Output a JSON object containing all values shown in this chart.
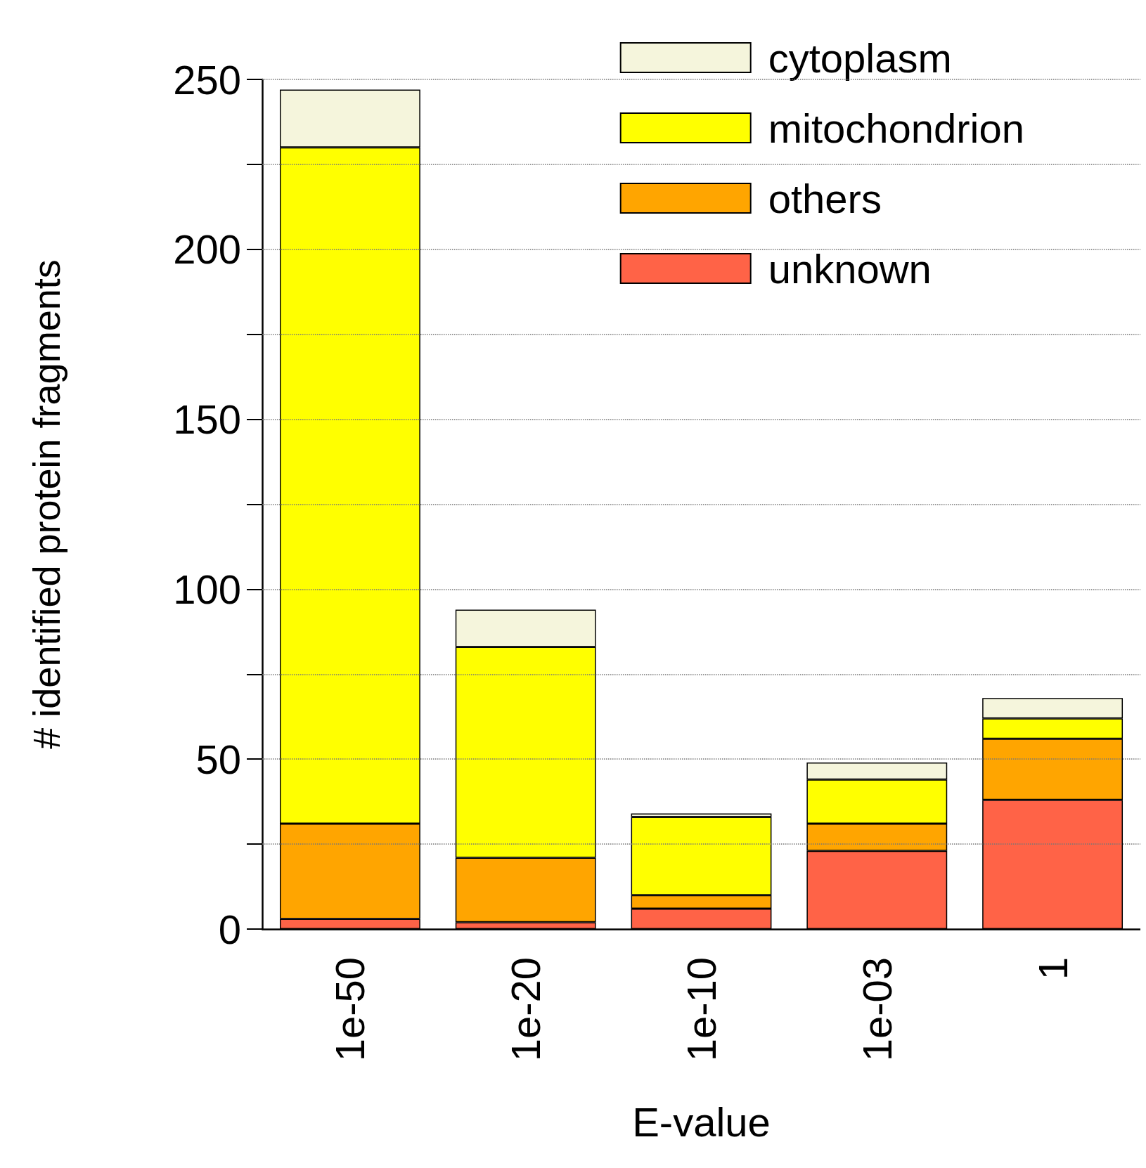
{
  "chart_data": {
    "type": "bar",
    "stacked": true,
    "xlabel": "E-value",
    "ylabel": "# identified protein fragments",
    "categories": [
      "1e-50",
      "1e-20",
      "1e-10",
      "1e-03",
      "1"
    ],
    "series": [
      {
        "name": "unknown",
        "color": "#ff6347",
        "values": [
          3,
          2,
          6,
          23,
          38
        ]
      },
      {
        "name": "others",
        "color": "#ffa500",
        "values": [
          28,
          19,
          4,
          8,
          18
        ]
      },
      {
        "name": "mitochondrion",
        "color": "#ffff00",
        "values": [
          199,
          62,
          23,
          13,
          6
        ]
      },
      {
        "name": "cytoplasm",
        "color": "#f5f5dc",
        "values": [
          17,
          11,
          1,
          5,
          6
        ]
      }
    ],
    "ylim": [
      0,
      250
    ],
    "yticks": [
      0,
      {
        "value": 25,
        "label": null
      },
      50,
      {
        "value": 75,
        "label": null
      },
      100,
      {
        "value": 125,
        "label": null
      },
      150,
      {
        "value": 175,
        "label": null
      },
      200,
      {
        "value": 225,
        "label": null
      },
      250
    ],
    "grid": "y",
    "line_style": "dotted",
    "legend": "top right"
  }
}
